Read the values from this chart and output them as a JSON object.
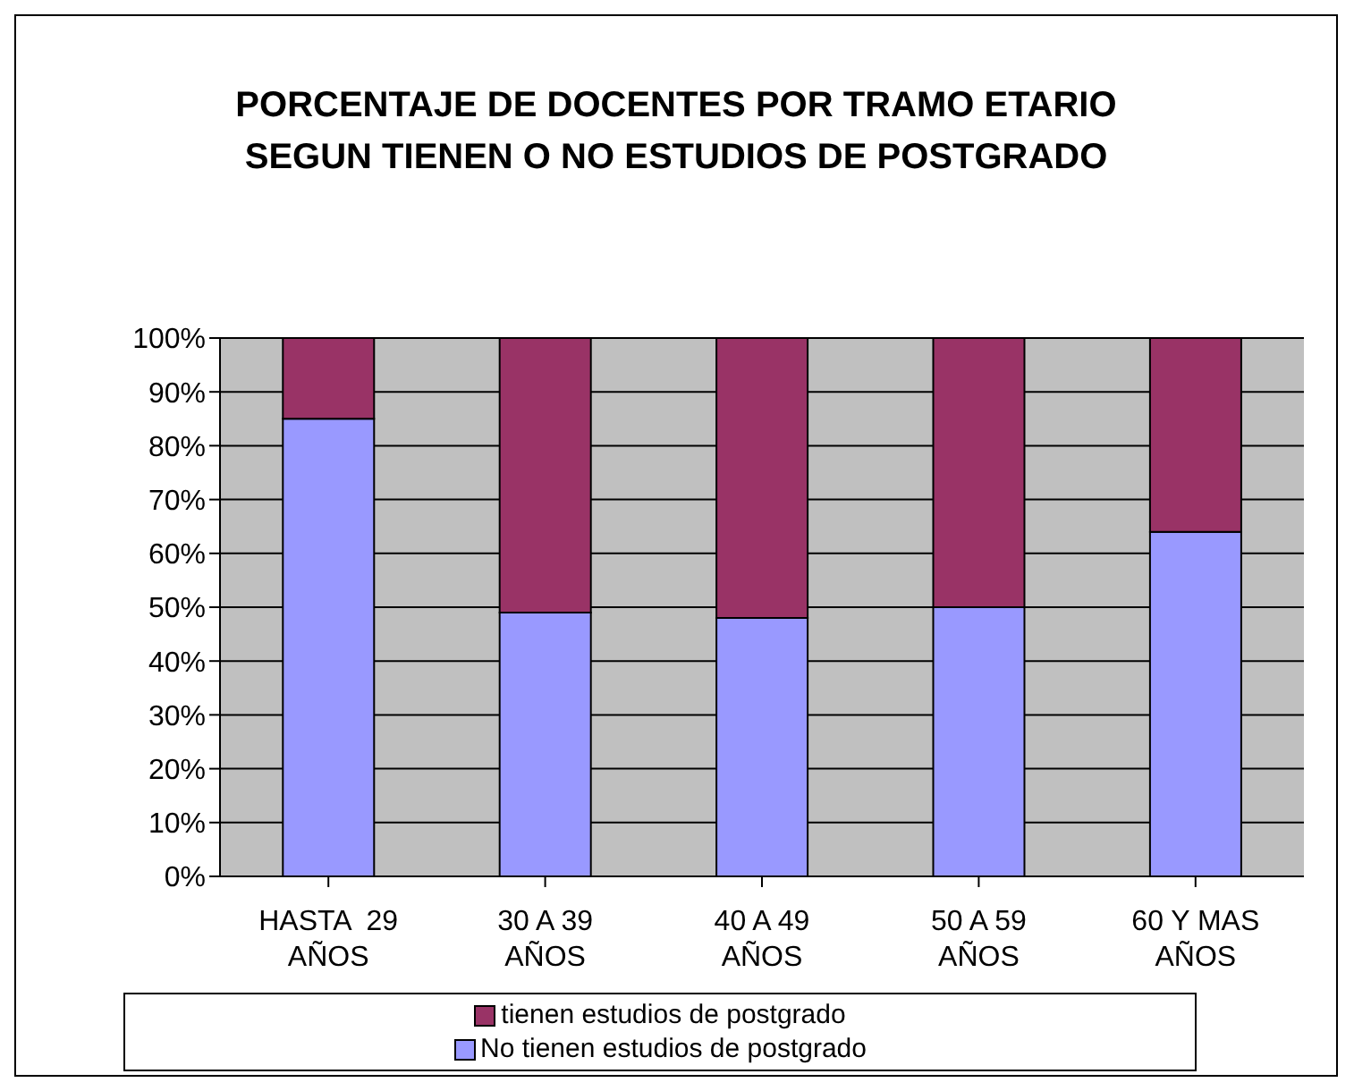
{
  "chart_data": {
    "type": "bar",
    "title": "PORCENTAJE DE DOCENTES POR TRAMO ETARIO SEGUN TIENEN O NO ESTUDIOS DE POSTGRADO",
    "categories": [
      "HASTA  29 AÑOS",
      "30 A 39 AÑOS",
      "40 A 49 AÑOS",
      "50 A 59 AÑOS",
      "60 Y MAS AÑOS"
    ],
    "series": [
      {
        "name": "No tienen estudios de postgrado",
        "color": "#9999ff",
        "values": [
          85,
          49,
          48,
          50,
          64
        ]
      },
      {
        "name": "tienen estudios de postgrado",
        "color": "#993366",
        "values": [
          15,
          51,
          52,
          50,
          36
        ]
      }
    ],
    "stacked": true,
    "ylim": [
      0,
      100
    ],
    "yticks": [
      {
        "value": 0,
        "label": "0%"
      },
      {
        "value": 10,
        "label": "10%"
      },
      {
        "value": 20,
        "label": "20%"
      },
      {
        "value": 30,
        "label": "30%"
      },
      {
        "value": 40,
        "label": "40%"
      },
      {
        "value": 50,
        "label": "50%"
      },
      {
        "value": 60,
        "label": "60%"
      },
      {
        "value": 70,
        "label": "70%"
      },
      {
        "value": 80,
        "label": "80%"
      },
      {
        "value": 90,
        "label": "90%"
      },
      {
        "value": 100,
        "label": "100%"
      }
    ],
    "grid": "y",
    "legend": "bottom"
  }
}
